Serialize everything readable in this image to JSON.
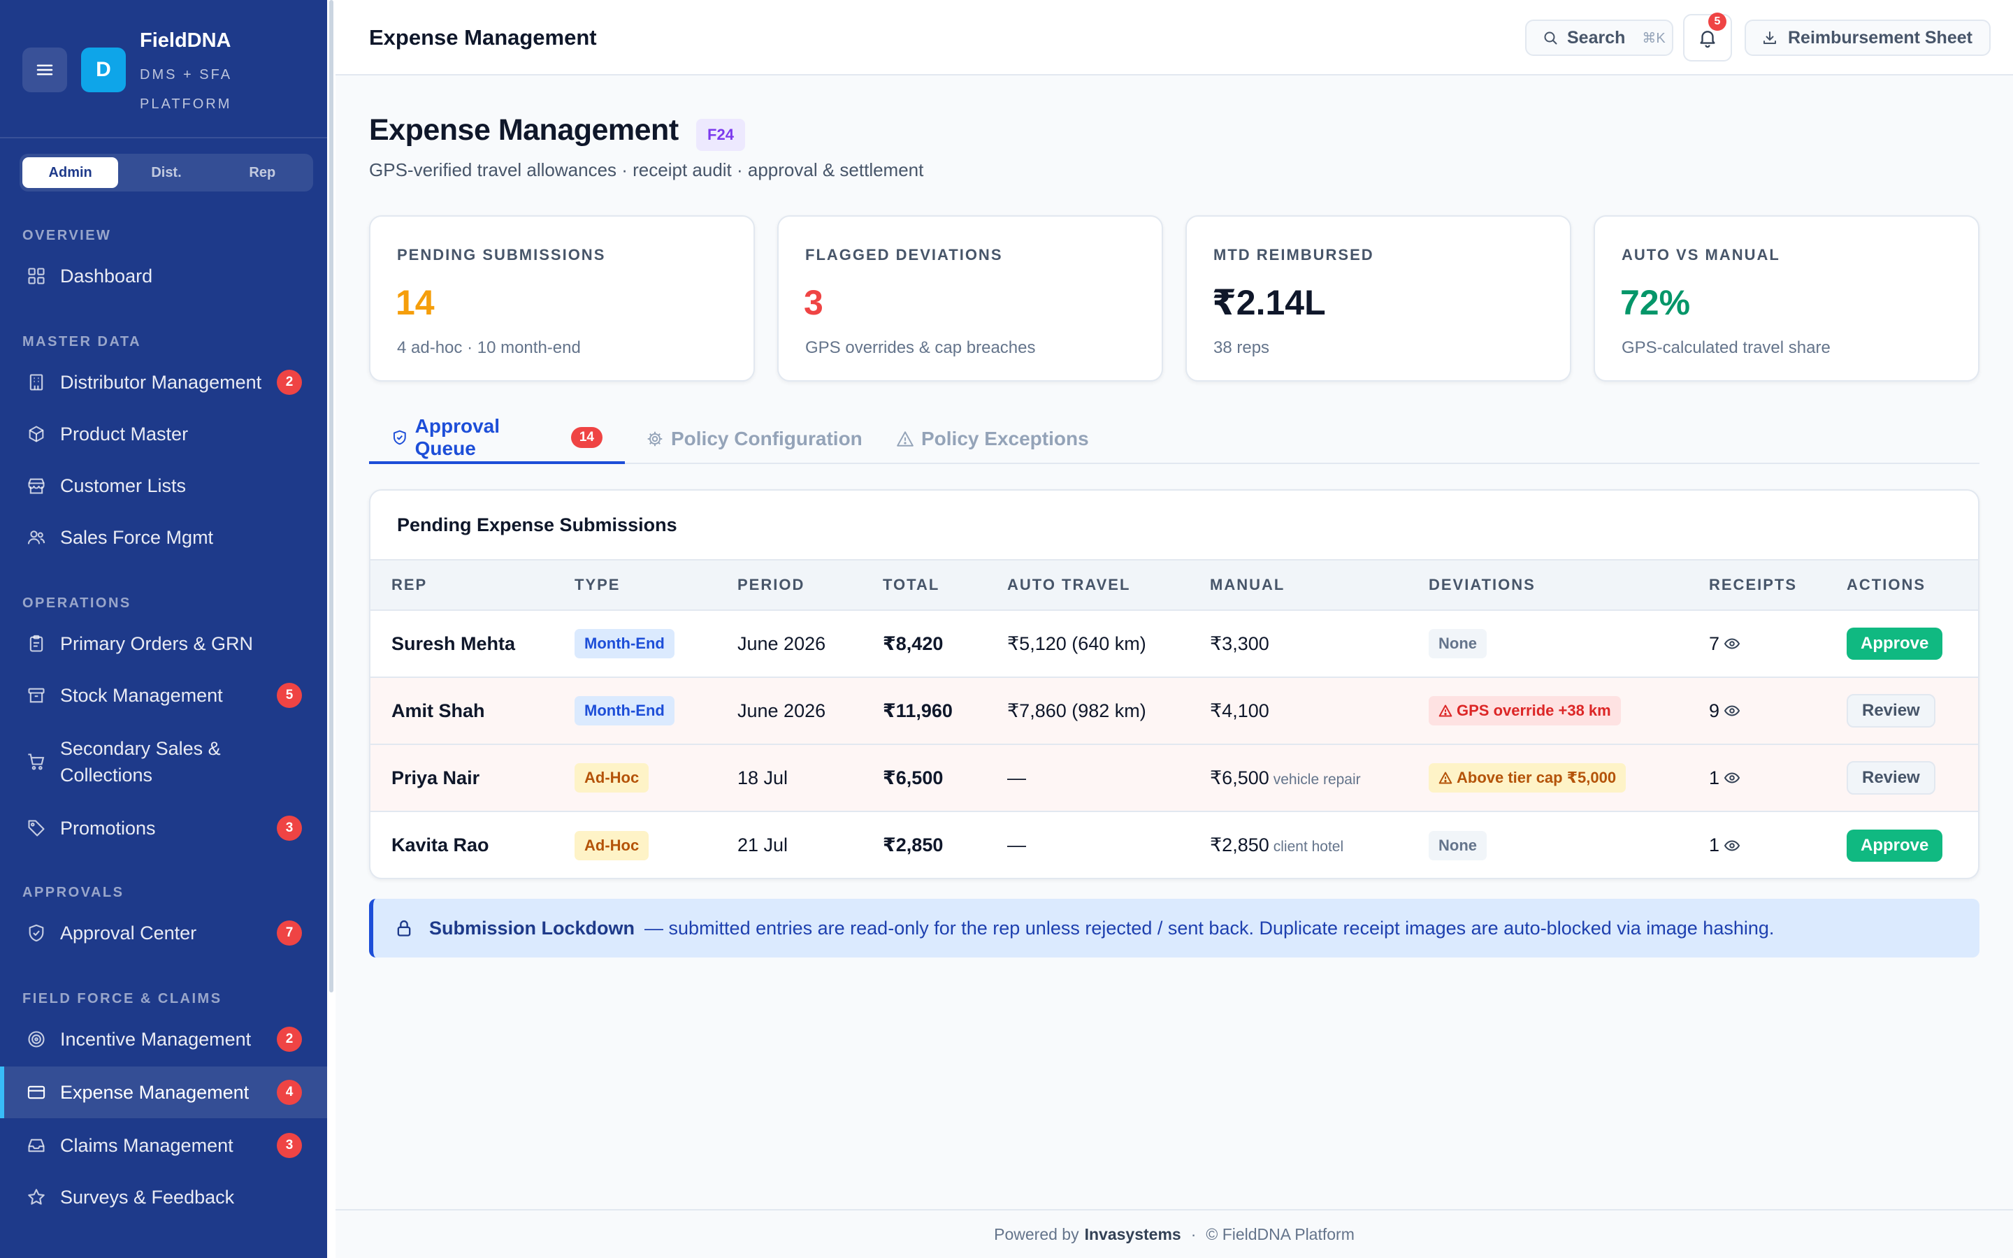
{
  "sidebar": {
    "brand": {
      "name": "FieldDNA",
      "subtitle": "DMS + SFA PLATFORM",
      "logo_letter": "D"
    },
    "roles": [
      "Admin",
      "Dist.",
      "Rep"
    ],
    "active_role": "Admin",
    "sections": [
      {
        "label": "OVERVIEW",
        "items": [
          {
            "label": "Dashboard",
            "icon": "grid-icon"
          }
        ]
      },
      {
        "label": "MASTER DATA",
        "items": [
          {
            "label": "Distributor Management",
            "icon": "building-icon",
            "badge": "2"
          },
          {
            "label": "Product Master",
            "icon": "box-icon"
          },
          {
            "label": "Customer Lists",
            "icon": "store-icon"
          },
          {
            "label": "Sales Force Mgmt",
            "icon": "users-icon"
          }
        ]
      },
      {
        "label": "OPERATIONS",
        "items": [
          {
            "label": "Primary Orders & GRN",
            "icon": "clipboard-icon"
          },
          {
            "label": "Stock Management",
            "icon": "archive-icon",
            "badge": "5"
          },
          {
            "label": "Secondary Sales & Collections",
            "icon": "cart-icon"
          },
          {
            "label": "Promotions",
            "icon": "tag-icon",
            "badge": "3"
          }
        ]
      },
      {
        "label": "APPROVALS",
        "items": [
          {
            "label": "Approval Center",
            "icon": "shield-check-icon",
            "badge": "7"
          }
        ]
      },
      {
        "label": "FIELD FORCE & CLAIMS",
        "items": [
          {
            "label": "Incentive Management",
            "icon": "target-icon",
            "badge": "2"
          },
          {
            "label": "Expense Management",
            "icon": "credit-card-icon",
            "badge": "4",
            "active": true
          },
          {
            "label": "Claims Management",
            "icon": "inbox-icon",
            "badge": "3"
          },
          {
            "label": "Surveys & Feedback",
            "icon": "star-icon"
          }
        ]
      }
    ]
  },
  "topbar": {
    "title": "Expense Management",
    "search_label": "Search",
    "search_shortcut": "⌘K",
    "notification_count": "5",
    "reimbursement_label": "Reimbursement Sheet"
  },
  "page": {
    "title": "Expense Management",
    "code": "F24",
    "subtitle": "GPS-verified travel allowances · receipt audit · approval & settlement"
  },
  "kpis": [
    {
      "label": "PENDING SUBMISSIONS",
      "value": "14",
      "sub": "4 ad-hoc · 10 month-end",
      "color": "#f59e0b"
    },
    {
      "label": "FLAGGED DEVIATIONS",
      "value": "3",
      "sub": "GPS overrides & cap breaches",
      "color": "#ef4444"
    },
    {
      "label": "MTD REIMBURSED",
      "value": "₹2.14L",
      "sub": "38 reps",
      "color": "#0f172a"
    },
    {
      "label": "AUTO VS MANUAL",
      "value": "72%",
      "sub": "GPS-calculated travel share",
      "color": "#059669"
    }
  ],
  "tabs": [
    {
      "label": "Approval Queue",
      "badge": "14",
      "icon": "shield-icon",
      "active": true
    },
    {
      "label": "Policy Configuration",
      "icon": "gear-icon"
    },
    {
      "label": "Policy Exceptions",
      "icon": "warning-icon"
    }
  ],
  "table": {
    "title": "Pending Expense Submissions",
    "columns": [
      "REP",
      "TYPE",
      "PERIOD",
      "TOTAL",
      "AUTO TRAVEL",
      "MANUAL",
      "DEVIATIONS",
      "RECEIPTS",
      "ACTIONS"
    ],
    "rows": [
      {
        "rep": "Suresh Mehta",
        "type": "Month-End",
        "period": "June 2026",
        "total": "₹8,420",
        "auto_travel": "₹5,120 (640 km)",
        "manual": "₹3,300",
        "manual_note": "",
        "deviation": "None",
        "receipts": "7",
        "action": "Approve"
      },
      {
        "rep": "Amit Shah",
        "type": "Month-End",
        "period": "June 2026",
        "total": "₹11,960",
        "auto_travel": "₹7,860 (982 km)",
        "manual": "₹4,100",
        "manual_note": "",
        "deviation": "GPS override +38 km",
        "receipts": "9",
        "action": "Review"
      },
      {
        "rep": "Priya Nair",
        "type": "Ad-Hoc",
        "period": "18 Jul",
        "total": "₹6,500",
        "auto_travel": "—",
        "manual": "₹6,500",
        "manual_note": "vehicle repair",
        "deviation": "Above tier cap ₹5,000",
        "receipts": "1",
        "action": "Review"
      },
      {
        "rep": "Kavita Rao",
        "type": "Ad-Hoc",
        "period": "21 Jul",
        "total": "₹2,850",
        "auto_travel": "—",
        "manual": "₹2,850",
        "manual_note": "client hotel",
        "deviation": "None",
        "receipts": "1",
        "action": "Approve"
      }
    ]
  },
  "callout": {
    "title": "Submission Lockdown",
    "text": "— submitted entries are read-only for the rep unless rejected / sent back. Duplicate receipt images are auto-blocked via image hashing."
  },
  "footer": {
    "prefix": "Powered by",
    "company": "Invasystems",
    "sep": "·",
    "copyright": "© FieldDNA Platform"
  }
}
